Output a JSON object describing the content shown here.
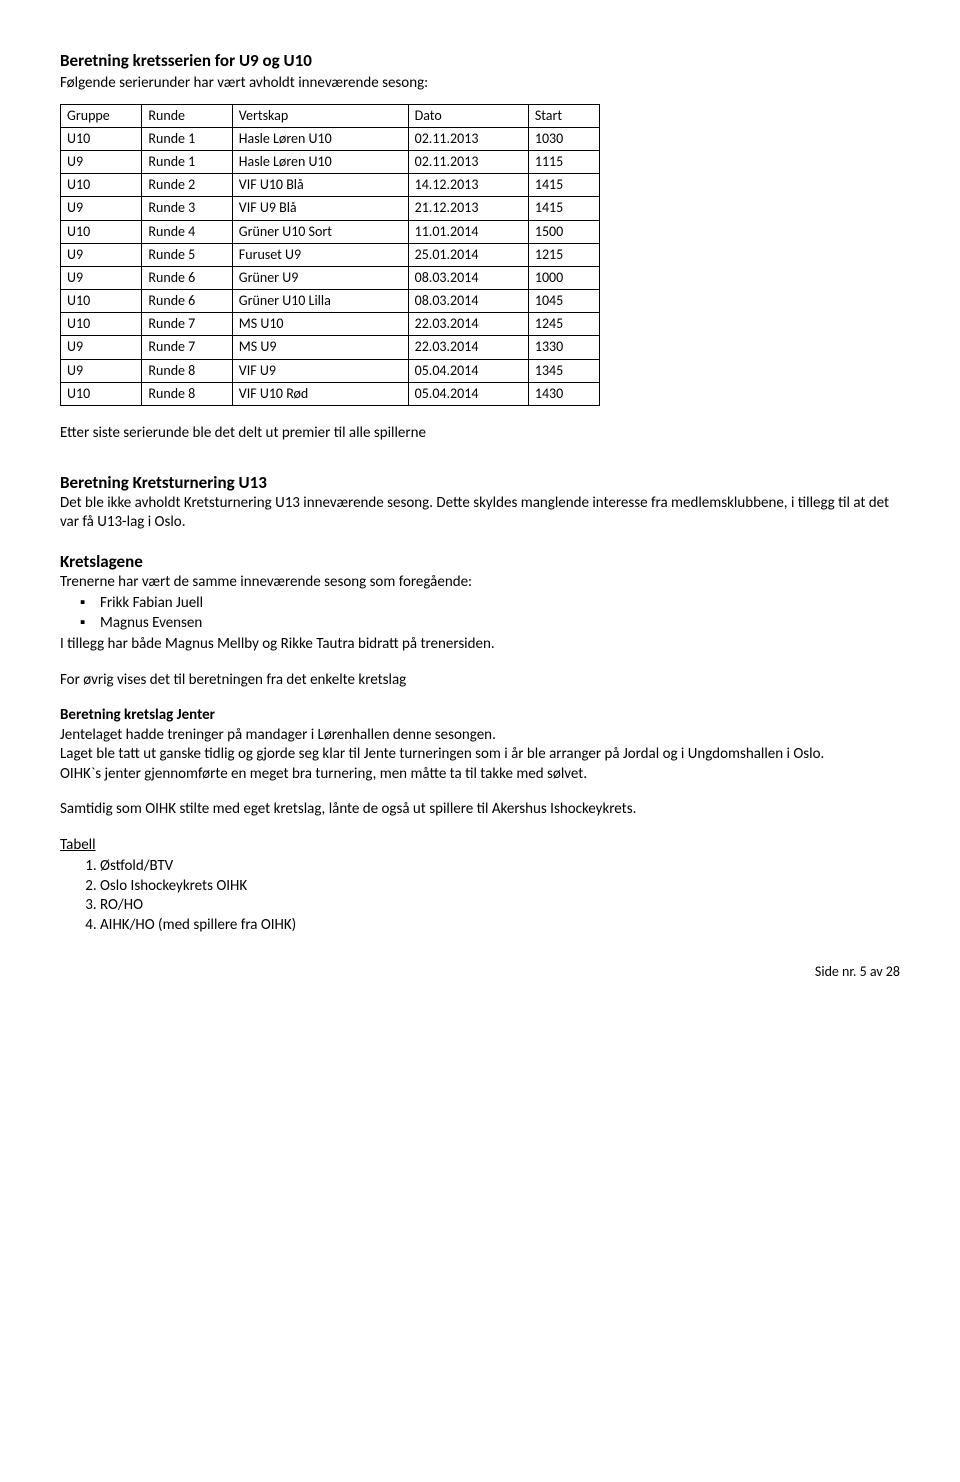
{
  "title1": "Beretning kretsserien for U9 og U10",
  "subtitle1": "Følgende serierunder har vært avholdt inneværende sesong:",
  "table": {
    "header": [
      "Gruppe",
      "Runde",
      "Vertskap",
      "Dato",
      "Start"
    ],
    "rows": [
      [
        "U10",
        "Runde 1",
        "Hasle Løren U10",
        "02.11.2013",
        "1030"
      ],
      [
        "U9",
        "Runde 1",
        "Hasle Løren U10",
        "02.11.2013",
        "1115"
      ],
      [
        "U10",
        "Runde 2",
        "VIF U10 Blå",
        "14.12.2013",
        "1415"
      ],
      [
        "U9",
        "Runde 3",
        "VIF U9 Blå",
        "21.12.2013",
        "1415"
      ],
      [
        "U10",
        "Runde 4",
        "Grüner U10 Sort",
        "11.01.2014",
        "1500"
      ],
      [
        "U9",
        "Runde 5",
        "Furuset U9",
        "25.01.2014",
        "1215"
      ],
      [
        "U9",
        "Runde 6",
        "Grüner U9",
        "08.03.2014",
        "1000"
      ],
      [
        "U10",
        "Runde 6",
        "Grüner U10 Lilla",
        "08.03.2014",
        "1045"
      ],
      [
        "U10",
        "Runde 7",
        "MS U10",
        "22.03.2014",
        "1245"
      ],
      [
        "U9",
        "Runde 7",
        "MS U9",
        "22.03.2014",
        "1330"
      ],
      [
        "U9",
        "Runde 8",
        "VIF U9",
        "05.04.2014",
        "1345"
      ],
      [
        "U10",
        "Runde 8",
        "VIF U10 Rød",
        "05.04.2014",
        "1430"
      ]
    ]
  },
  "after_table": "Etter siste serierunde ble det delt ut premier til alle spillerne",
  "u13_title": "Beretning Kretsturnering U13",
  "u13_body": "Det ble ikke avholdt Kretsturnering U13 inneværende sesong. Dette skyldes manglende interesse fra medlemsklubbene, i tillegg til at det var få U13-lag i Oslo.",
  "kretslagene_title": "Kretslagene",
  "kretslagene_intro": "Trenerne har vært de samme inneværende sesong som foregående:",
  "coaches": [
    "Frikk Fabian Juell",
    "Magnus Evensen"
  ],
  "coaches_after": "I tillegg har både Magnus Mellby og Rikke Tautra bidratt på trenersiden.",
  "ref_line": "For øvrig vises det til beretningen fra det enkelte kretslag",
  "jenter_title": "Beretning kretslag Jenter",
  "jenter_p1": "Jentelaget hadde treninger på mandager i Lørenhallen denne sesongen.",
  "jenter_p2": "Laget ble tatt ut ganske tidlig og gjorde seg klar til Jente turneringen som i år ble arranger på Jordal og i Ungdomshallen i Oslo.",
  "jenter_p3": "OIHK`s jenter gjennomførte en meget bra turnering, men måtte ta til takke med sølvet.",
  "jenter_p4": "Samtidig som OIHK stilte med eget kretslag, lånte de også ut spillere til Akershus Ishockeykrets.",
  "tabell_label": "Tabell",
  "tabell_items": [
    "Østfold/BTV",
    "Oslo Ishockeykrets OIHK",
    "RO/HO",
    "AIHK/HO (med spillere fra OIHK)"
  ],
  "footer": "Side nr. 5 av 28"
}
